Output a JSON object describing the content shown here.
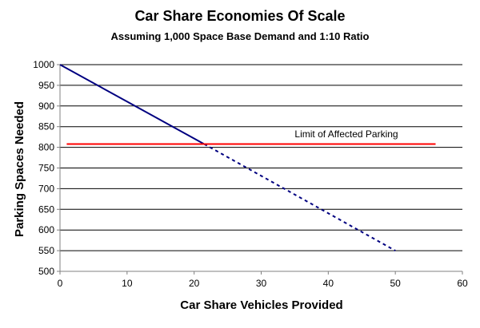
{
  "chart_data": {
    "type": "line",
    "title": "Car Share Economies Of Scale",
    "subtitle": "Assuming 1,000 Space Base Demand and 1:10 Ratio",
    "xlabel": "Car Share Vehicles Provided",
    "ylabel": "Parking Spaces Needed",
    "xlim": [
      0,
      60
    ],
    "ylim": [
      500,
      1000
    ],
    "xticks": [
      0,
      10,
      20,
      30,
      40,
      50,
      60
    ],
    "yticks": [
      500,
      550,
      600,
      650,
      700,
      750,
      800,
      850,
      900,
      950,
      1000
    ],
    "grid": "horizontal",
    "series": [
      {
        "style": "solid",
        "color": "#000080",
        "x": [
          0,
          21.5
        ],
        "y": [
          1000,
          808
        ]
      },
      {
        "style": "dashed",
        "color": "#000080",
        "x": [
          21.5,
          50
        ],
        "y": [
          808,
          550
        ]
      },
      {
        "style": "solid",
        "color": "#ff0000",
        "x": [
          1,
          56
        ],
        "y": [
          808,
          808
        ]
      }
    ],
    "annotations": [
      {
        "text": "Limit of Affected Parking",
        "x": 35,
        "y": 820
      }
    ]
  }
}
